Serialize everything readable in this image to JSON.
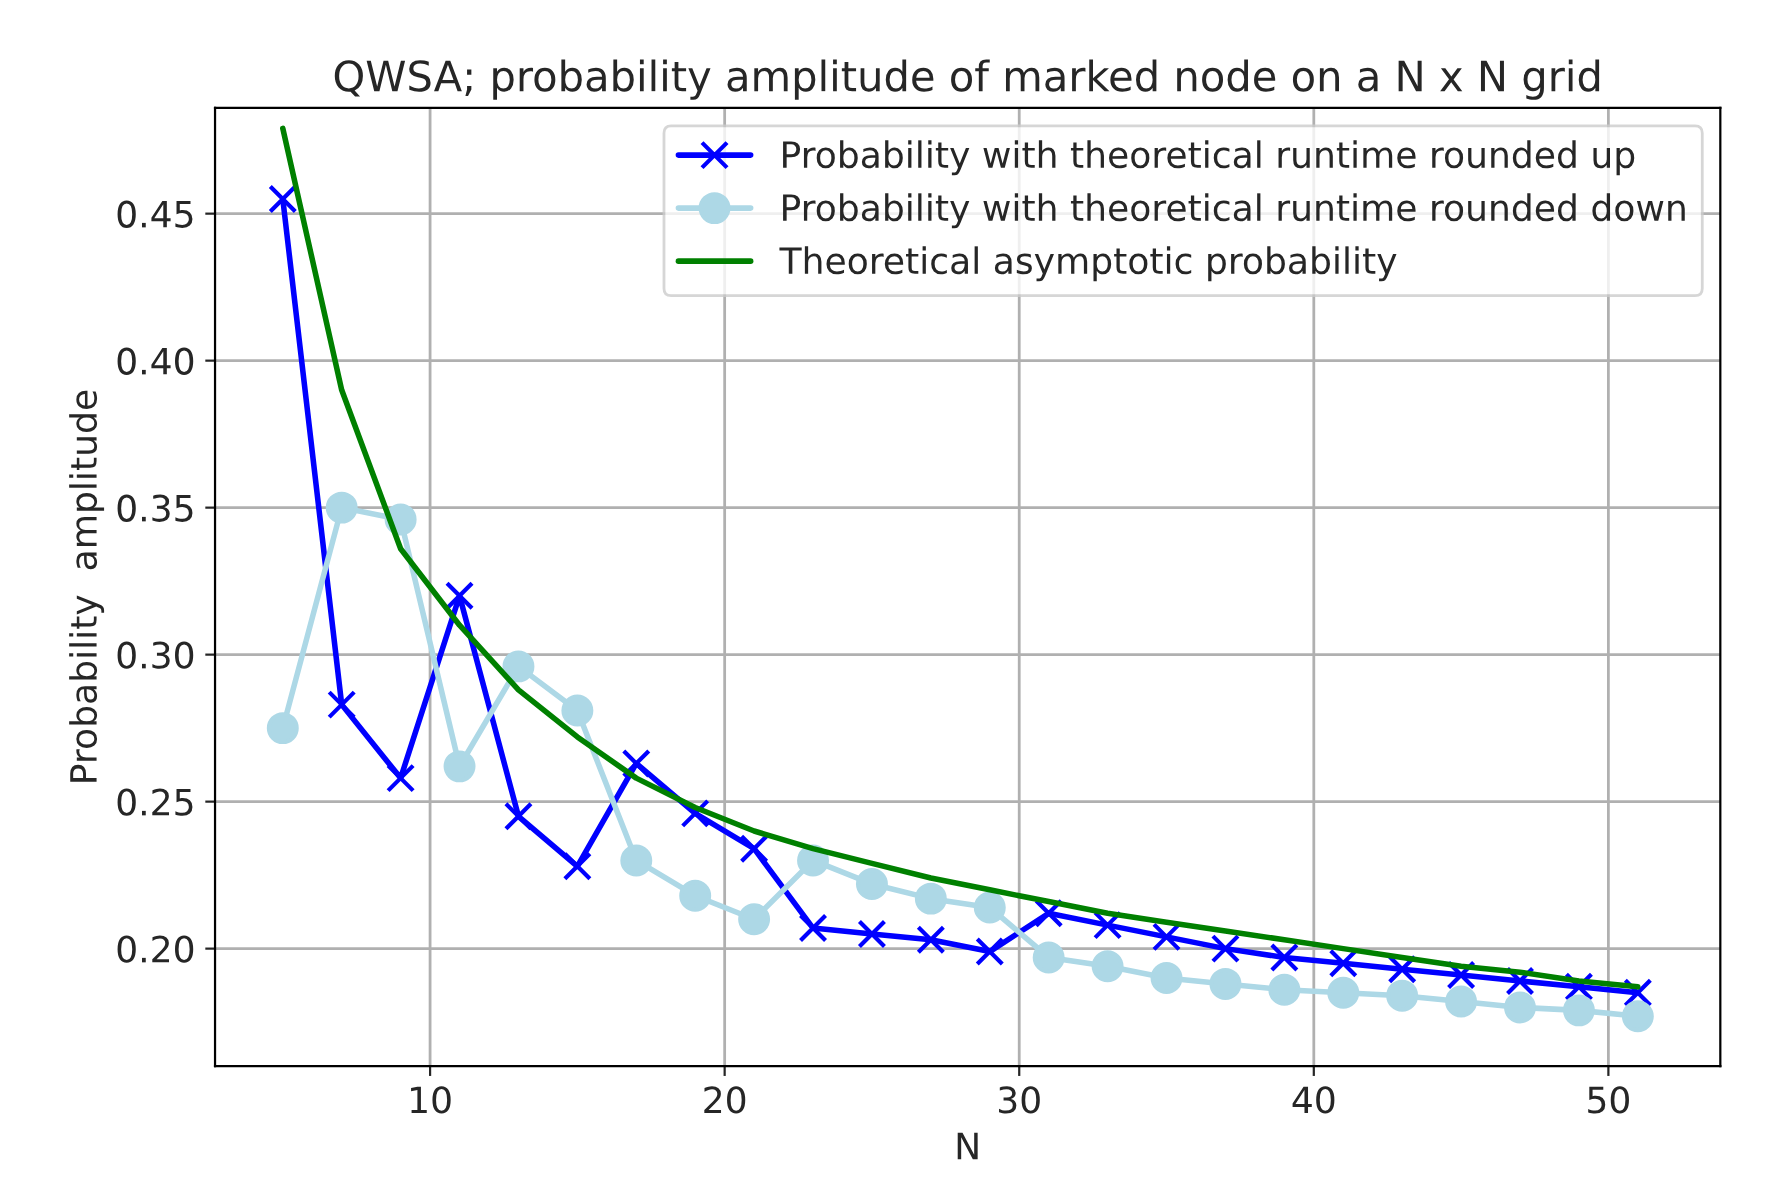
{
  "chart_data": {
    "type": "line",
    "title": "QWSA; probability amplitude of marked node on a N x N grid",
    "xlabel": "N",
    "ylabel": "Probability  amplitude",
    "x": [
      5,
      7,
      9,
      11,
      13,
      15,
      17,
      19,
      21,
      23,
      25,
      27,
      29,
      31,
      33,
      35,
      37,
      39,
      41,
      43,
      45,
      47,
      49,
      51
    ],
    "series": [
      {
        "name": "Probability with theoretical runtime rounded up",
        "color": "#0000ff",
        "marker": "cross",
        "values": [
          0.455,
          0.283,
          0.258,
          0.32,
          0.245,
          0.228,
          0.263,
          0.246,
          0.234,
          0.207,
          0.205,
          0.203,
          0.199,
          0.212,
          0.208,
          0.204,
          0.2,
          0.197,
          0.195,
          0.193,
          0.191,
          0.189,
          0.187,
          0.185
        ]
      },
      {
        "name": "Probability with theoretical runtime rounded down",
        "color": "#add8e6",
        "marker": "circle",
        "values": [
          0.275,
          0.35,
          0.346,
          0.262,
          0.296,
          0.281,
          0.23,
          0.218,
          0.21,
          0.23,
          0.222,
          0.217,
          0.214,
          0.197,
          0.194,
          0.19,
          0.188,
          0.186,
          0.185,
          0.184,
          0.182,
          0.18,
          0.179,
          0.177
        ]
      },
      {
        "name": "Theoretical asymptotic probability",
        "color": "#008000",
        "marker": "none",
        "values": [
          0.479,
          0.39,
          0.336,
          0.31,
          0.288,
          0.272,
          0.258,
          0.248,
          0.24,
          0.234,
          0.229,
          0.224,
          0.22,
          0.216,
          0.212,
          0.209,
          0.206,
          0.203,
          0.2,
          0.197,
          0.194,
          0.192,
          0.189,
          0.187
        ]
      }
    ],
    "xlim": [
      2.7,
      53.8
    ],
    "ylim": [
      0.16,
      0.486
    ],
    "xticks": [
      10,
      20,
      30,
      40,
      50
    ],
    "yticks": [
      {
        "value": 0.2,
        "label": "0.20"
      },
      {
        "value": 0.25,
        "label": "0.25"
      },
      {
        "value": 0.3,
        "label": "0.30"
      },
      {
        "value": 0.35,
        "label": "0.35"
      },
      {
        "value": 0.4,
        "label": "0.40"
      },
      {
        "value": 0.45,
        "label": "0.45"
      }
    ],
    "grid": true,
    "legend": "top right",
    "line_style": "solid"
  }
}
